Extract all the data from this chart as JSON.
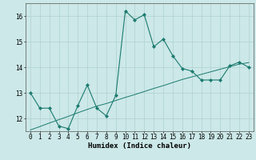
{
  "x": [
    0,
    1,
    2,
    3,
    4,
    5,
    6,
    7,
    8,
    9,
    10,
    11,
    12,
    13,
    14,
    15,
    16,
    17,
    18,
    19,
    20,
    21,
    22,
    23
  ],
  "y_main": [
    13.0,
    12.4,
    12.4,
    11.7,
    11.6,
    12.5,
    13.3,
    12.4,
    12.1,
    12.9,
    16.2,
    15.85,
    16.05,
    14.8,
    15.1,
    14.45,
    13.95,
    13.85,
    13.5,
    13.5,
    13.5,
    14.05,
    14.2,
    14.0
  ],
  "y_trend": [
    11.55,
    11.68,
    11.82,
    11.95,
    12.08,
    12.22,
    12.35,
    12.48,
    12.58,
    12.7,
    12.82,
    12.93,
    13.05,
    13.17,
    13.28,
    13.4,
    13.52,
    13.62,
    13.72,
    13.82,
    13.92,
    14.02,
    14.12,
    14.18
  ],
  "line_color": "#1a7a6e",
  "bg_color": "#cce8e8",
  "grid_color": "#b0d0d0",
  "xlabel": "Humidex (Indice chaleur)",
  "ylim": [
    11.5,
    16.5
  ],
  "xlim": [
    -0.5,
    23.5
  ],
  "yticks": [
    12,
    13,
    14,
    15,
    16
  ],
  "xticks": [
    0,
    1,
    2,
    3,
    4,
    5,
    6,
    7,
    8,
    9,
    10,
    11,
    12,
    13,
    14,
    15,
    16,
    17,
    18,
    19,
    20,
    21,
    22,
    23
  ],
  "xlabel_fontsize": 6.5,
  "tick_fontsize": 5.5,
  "marker_size": 2.2,
  "main_lw": 0.8,
  "trend_lw": 0.7
}
